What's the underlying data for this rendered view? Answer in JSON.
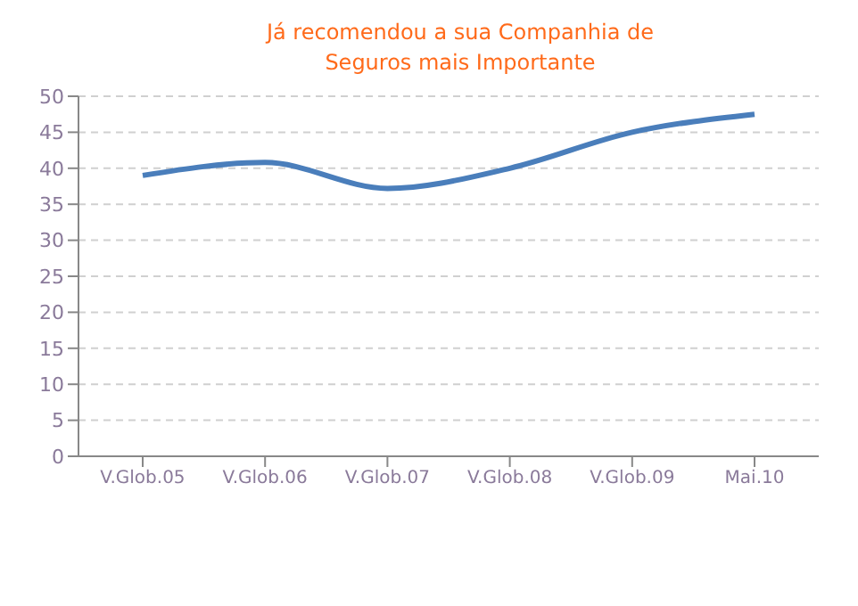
{
  "chart_data": {
    "type": "line",
    "title": "Já recomendou a sua Companhia de Seguros mais  Importante",
    "categories": [
      "V.Glob.05",
      "V.Glob.06",
      "V.Glob.07",
      "V.Glob.08",
      "V.Glob.09",
      "Mai.10"
    ],
    "series": [
      {
        "color": "#4a7ebb",
        "values": [
          39,
          40.8,
          37.2,
          40,
          45,
          47.5
        ]
      }
    ],
    "ylim": [
      0,
      50
    ],
    "yticks": [
      0,
      5,
      10,
      15,
      20,
      25,
      30,
      35,
      40,
      45,
      50
    ],
    "grid": "y",
    "marker": "none",
    "line_style": "solid"
  }
}
